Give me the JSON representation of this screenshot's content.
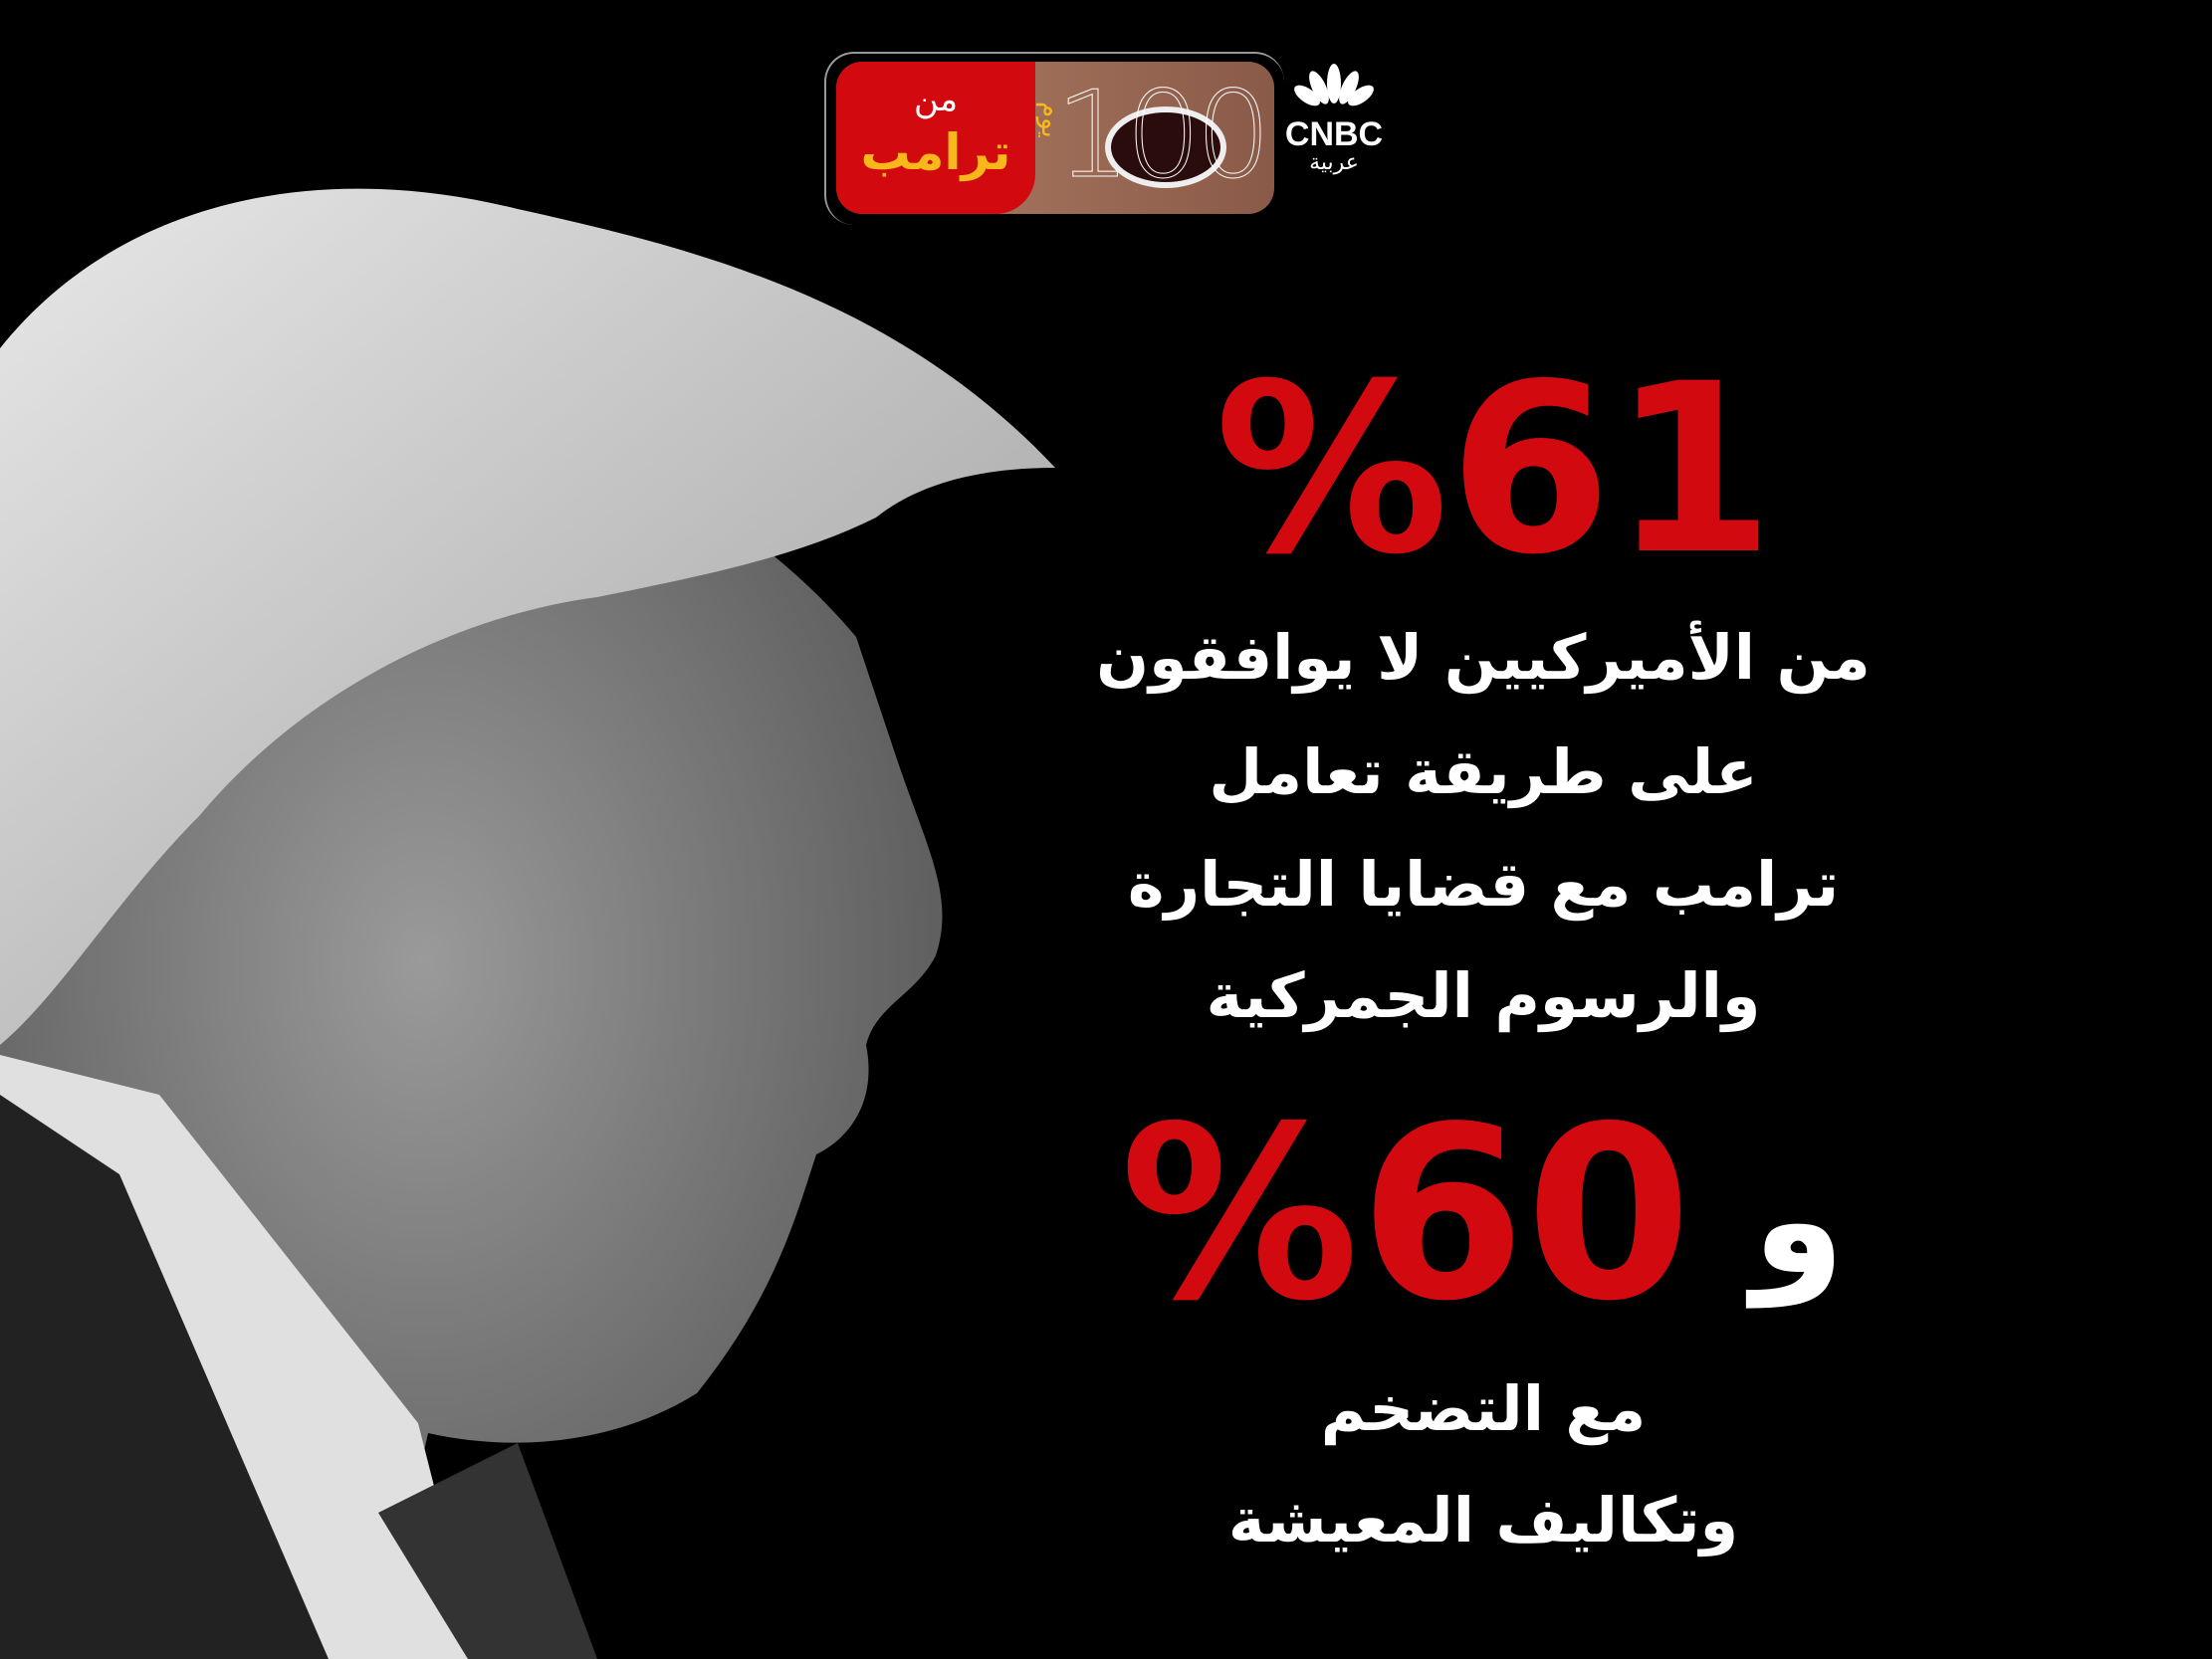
{
  "banner": {
    "min": "من",
    "trump": "ترامب",
    "number": "100",
    "day": "يوم"
  },
  "logo": {
    "brand": "CNBC",
    "arabic": "عربية"
  },
  "stats": [
    {
      "value": "%61",
      "lines": [
        "من الأميركيين لا يوافقون",
        "على طريقة تعامل",
        "ترامب مع قضايا التجارة",
        "والرسوم الجمركية"
      ]
    },
    {
      "prefix": "و",
      "value": "%60",
      "lines": [
        "مع التضخم",
        "وتكاليف المعيشة"
      ]
    }
  ],
  "colors": {
    "accent": "#d20a10",
    "banner_text": "#f8b81c",
    "background": "#000000"
  }
}
